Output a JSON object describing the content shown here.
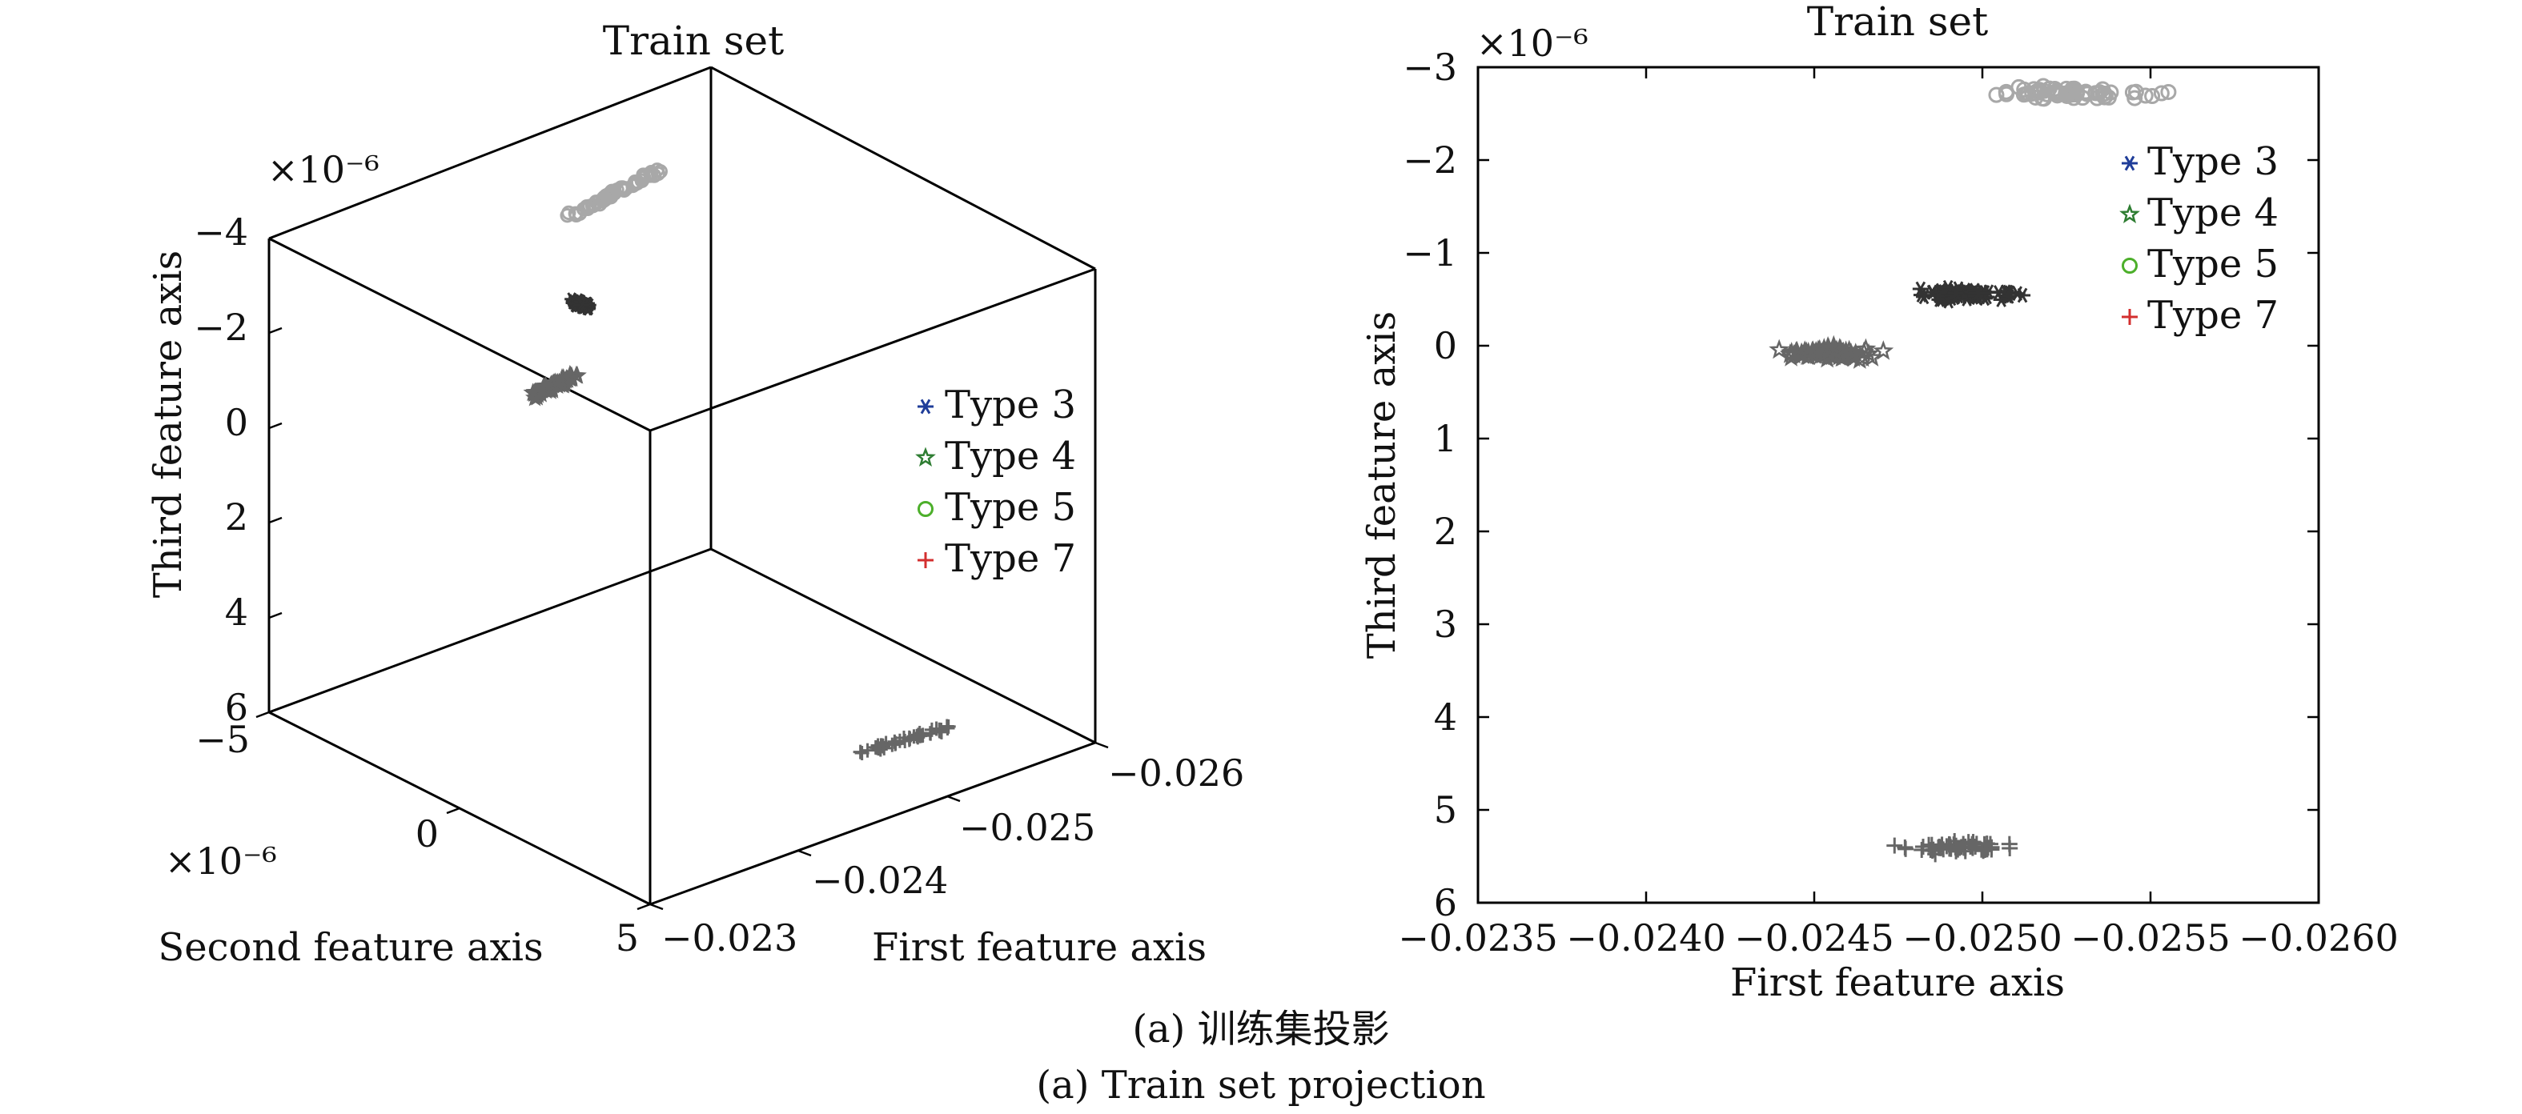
{
  "caption": {
    "zh": "(a) 训练集投影",
    "en": "(a) Train set projection"
  },
  "colors": {
    "type3": "#1f3d99",
    "type4": "#2e7d32",
    "type5": "#4caf2a",
    "type7": "#d32f2f",
    "pts_type3": "#333333",
    "pts_type4": "#666666",
    "pts_type5": "#a8a8a8",
    "pts_type7": "#666666",
    "axis": "#000000"
  },
  "legend": [
    {
      "label": "Type 3",
      "marker": "asterisk",
      "color_key": "type3"
    },
    {
      "label": "Type 4",
      "marker": "star",
      "color_key": "type4"
    },
    {
      "label": "Type 5",
      "marker": "circle",
      "color_key": "type5"
    },
    {
      "label": "Type 7",
      "marker": "plus",
      "color_key": "type7"
    }
  ],
  "chart_data": [
    {
      "type": "scatter",
      "projection": "3d",
      "title": "Train set",
      "xlabel": "First feature axis",
      "ylabel": "Second feature axis",
      "zlabel": "Third feature axis",
      "xlim": [
        -0.023,
        -0.026
      ],
      "ylim": [
        -5e-06,
        5e-06
      ],
      "zlim": [
        -4e-06,
        6e-06
      ],
      "x_ticks": [
        "−0.023",
        "−0.024",
        "−0.025",
        "−0.026"
      ],
      "y_ticks": [
        "−5",
        "0",
        "5"
      ],
      "z_ticks": [
        "−4",
        "−2",
        "0",
        "2",
        "4",
        "6"
      ],
      "y_exponent": "×10⁻⁶",
      "z_exponent": "×10⁻⁶",
      "legend_position": "right",
      "series": [
        {
          "name": "Type 3",
          "marker": "asterisk",
          "x": [
            -0.02495,
            -0.02505
          ],
          "y": [
            -4.6e-06,
            -4.6e-06
          ],
          "z": [
            -6e-07,
            -4e-07
          ],
          "n": 70
        },
        {
          "name": "Type 4",
          "marker": "star",
          "x": [
            -0.02435,
            -0.02465
          ],
          "y": [
            -3.3e-06,
            -3.3e-06
          ],
          "z": [
            1.5e-07,
            5e-08
          ],
          "n": 70
        },
        {
          "name": "Type 5",
          "marker": "circle",
          "x": [
            -0.02495,
            -0.0256
          ],
          "y": [
            -4.8e-06,
            -4.8e-06
          ],
          "z": [
            -2.3e-06,
            -2.6e-06
          ],
          "n": 60
        },
        {
          "name": "Type 7",
          "marker": "plus",
          "x": [
            -0.0247,
            -0.0253
          ],
          "y": [
            3.9e-06,
            3.9e-06
          ],
          "z": [
            5.2e-06,
            5.3e-06
          ],
          "n": 45
        }
      ]
    },
    {
      "type": "scatter",
      "title": "Train set",
      "xlabel": "First feature axis",
      "ylabel": "Third feature axis",
      "xlim": [
        -0.0235,
        -0.026
      ],
      "ylim": [
        -3e-06,
        6e-06
      ],
      "y_reversed": true,
      "x_ticks": [
        "−0.0235",
        "−0.0240",
        "−0.0245",
        "−0.0250",
        "−0.0255",
        "−0.0260"
      ],
      "y_ticks": [
        "−3",
        "−2",
        "−1",
        "0",
        "1",
        "2",
        "3",
        "4",
        "5",
        "6"
      ],
      "y_exponent": "×10⁻⁶",
      "legend_position": "top-right",
      "series": [
        {
          "name": "Type 3",
          "marker": "asterisk",
          "x_range": [
            -0.02475,
            -0.02515
          ],
          "y_mean": -5.5e-07,
          "n": 80
        },
        {
          "name": "Type 4",
          "marker": "star",
          "x_range": [
            -0.02435,
            -0.02475
          ],
          "y_mean": 8e-08,
          "n": 80
        },
        {
          "name": "Type 5",
          "marker": "circle",
          "x_range": [
            -0.02495,
            -0.0256
          ],
          "y_mean": -2.72e-06,
          "n": 70
        },
        {
          "name": "Type 7",
          "marker": "plus",
          "x_range": [
            -0.0247,
            -0.02515
          ],
          "y_mean": 5.4e-06,
          "n": 60
        }
      ]
    }
  ]
}
